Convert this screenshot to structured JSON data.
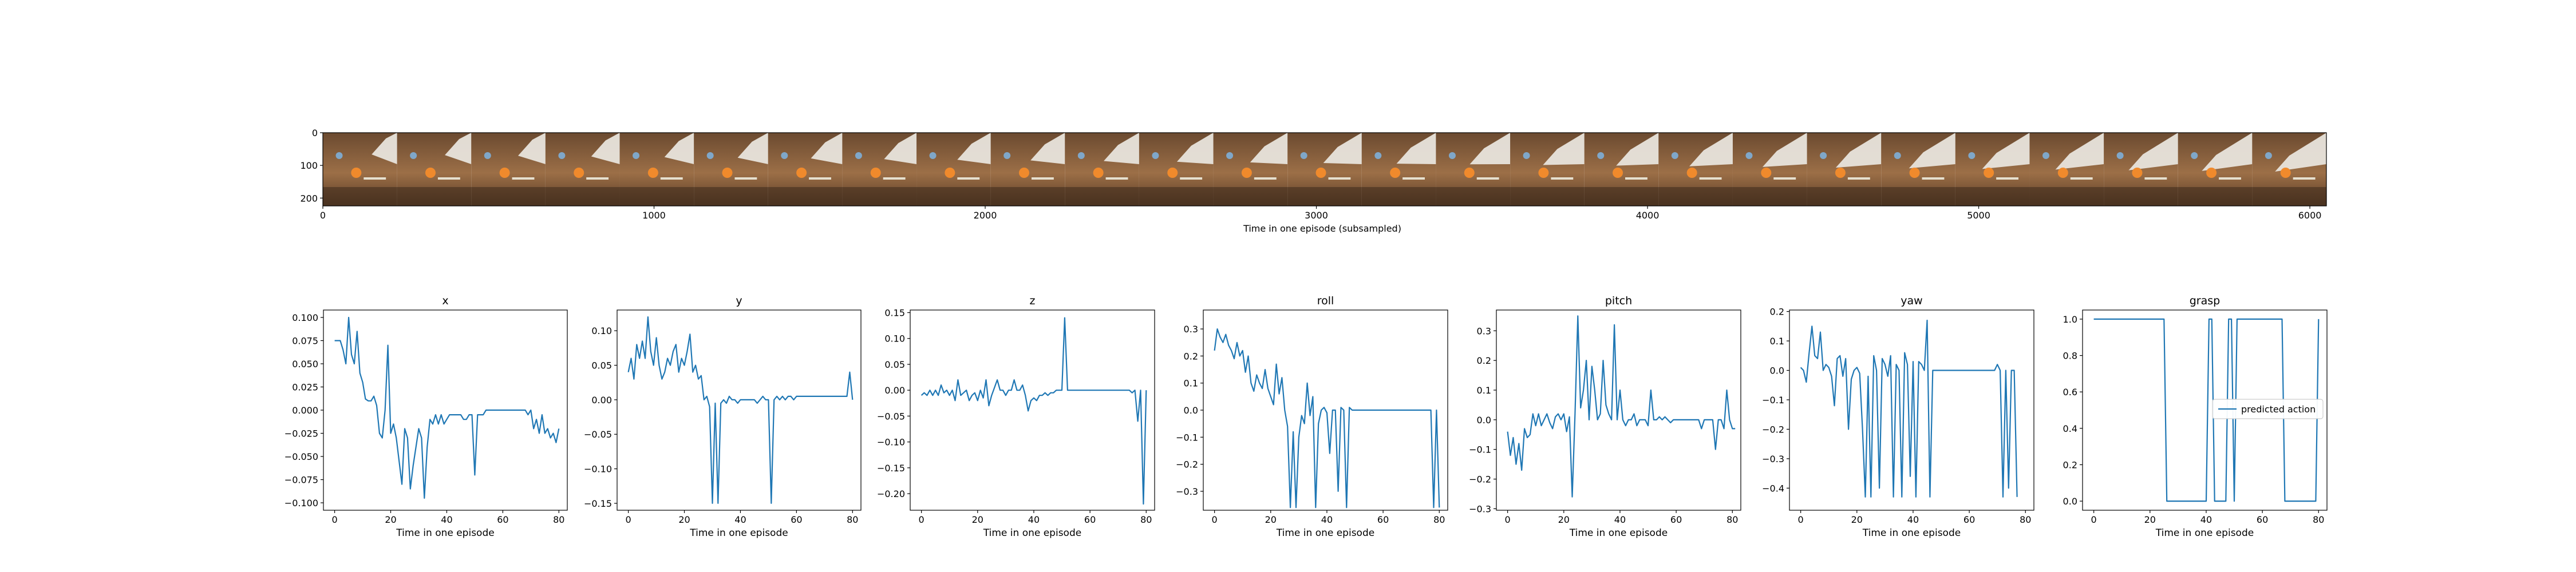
{
  "image_strip": {
    "xlabel": "Time in one episode (subsampled)",
    "x_ticks": [
      "0",
      "1000",
      "2000",
      "3000",
      "4000",
      "5000",
      "6000"
    ],
    "x_range": [
      0,
      6050
    ],
    "y_ticks": [
      "0",
      "100",
      "200"
    ],
    "y_range": [
      0,
      224
    ],
    "frame_count": 27
  },
  "chart_data": [
    {
      "type": "line",
      "title": "x",
      "xlabel": "Time in one episode",
      "ylabel": "",
      "xlim": [
        -4,
        83
      ],
      "ylim": [
        -0.108,
        0.108
      ],
      "xticks": [
        0,
        20,
        40,
        60,
        80
      ],
      "yticks": [
        0.1,
        0.075,
        0.05,
        0.025,
        0.0,
        -0.025,
        -0.05,
        -0.075,
        -0.1
      ],
      "ytick_labels": [
        "0.100",
        "0.075",
        "0.050",
        "0.025",
        "0.000",
        "−0.025",
        "−0.050",
        "−0.075",
        "−0.100"
      ],
      "series": [
        {
          "name": "",
          "values": [
            0.075,
            0.075,
            0.075,
            0.065,
            0.05,
            0.1,
            0.06,
            0.05,
            0.085,
            0.04,
            0.03,
            0.012,
            0.01,
            0.01,
            0.015,
            0.005,
            -0.025,
            -0.03,
            0.0,
            0.07,
            -0.025,
            -0.015,
            -0.03,
            -0.055,
            -0.08,
            -0.02,
            -0.03,
            -0.085,
            -0.06,
            -0.04,
            -0.02,
            -0.03,
            -0.095,
            -0.04,
            -0.01,
            -0.015,
            -0.005,
            -0.015,
            -0.005,
            -0.015,
            -0.01,
            -0.005,
            -0.005,
            -0.005,
            -0.005,
            -0.005,
            -0.01,
            -0.01,
            -0.005,
            -0.005,
            -0.07,
            -0.005,
            -0.005,
            -0.005,
            0.0,
            0.0,
            0.0,
            0.0,
            0.0,
            0.0,
            0.0,
            0.0,
            0.0,
            0.0,
            0.0,
            0.0,
            0.0,
            0.0,
            0.0,
            -0.005,
            0.0,
            -0.02,
            -0.01,
            -0.025,
            -0.005,
            -0.025,
            -0.02,
            -0.03,
            -0.025,
            -0.035,
            -0.02
          ]
        }
      ]
    },
    {
      "type": "line",
      "title": "y",
      "xlabel": "Time in one episode",
      "ylabel": "",
      "xlim": [
        -4,
        83
      ],
      "ylim": [
        -0.16,
        0.13
      ],
      "xticks": [
        0,
        20,
        40,
        60,
        80
      ],
      "yticks": [
        0.1,
        0.05,
        0.0,
        -0.05,
        -0.1,
        -0.15
      ],
      "ytick_labels": [
        "0.10",
        "0.05",
        "0.00",
        "−0.05",
        "−0.10",
        "−0.15"
      ],
      "series": [
        {
          "name": "",
          "values": [
            0.04,
            0.06,
            0.03,
            0.08,
            0.06,
            0.085,
            0.06,
            0.12,
            0.07,
            0.05,
            0.09,
            0.05,
            0.03,
            0.04,
            0.06,
            0.05,
            0.07,
            0.08,
            0.04,
            0.06,
            0.05,
            0.07,
            0.095,
            0.04,
            0.05,
            0.03,
            0.035,
            0.0,
            0.005,
            -0.01,
            -0.15,
            -0.005,
            -0.15,
            -0.005,
            0.0,
            -0.005,
            0.005,
            0.0,
            0.0,
            -0.005,
            0.0,
            0.0,
            0.0,
            0.0,
            0.0,
            0.0,
            -0.005,
            0.0,
            0.005,
            0.0,
            0.0,
            -0.15,
            0.0,
            0.005,
            0.0,
            0.005,
            0.0,
            0.005,
            0.005,
            0.0,
            0.005,
            0.005,
            0.005,
            0.005,
            0.005,
            0.005,
            0.005,
            0.005,
            0.005,
            0.005,
            0.005,
            0.005,
            0.005,
            0.005,
            0.005,
            0.005,
            0.005,
            0.005,
            0.005,
            0.04,
            0.0
          ]
        }
      ]
    },
    {
      "type": "line",
      "title": "z",
      "xlabel": "Time in one episode",
      "ylabel": "",
      "xlim": [
        -4,
        83
      ],
      "ylim": [
        -0.232,
        0.155
      ],
      "xticks": [
        0,
        20,
        40,
        60,
        80
      ],
      "yticks": [
        0.15,
        0.1,
        0.05,
        0.0,
        -0.05,
        -0.1,
        -0.15,
        -0.2
      ],
      "ytick_labels": [
        "0.15",
        "0.10",
        "0.05",
        "0.00",
        "−0.05",
        "−0.10",
        "−0.15",
        "−0.20"
      ],
      "series": [
        {
          "name": "",
          "values": [
            -0.01,
            -0.005,
            -0.01,
            0.0,
            -0.01,
            0.0,
            -0.01,
            0.01,
            -0.005,
            0.0,
            -0.01,
            0.0,
            -0.02,
            0.02,
            -0.01,
            -0.005,
            0.0,
            -0.02,
            -0.01,
            -0.005,
            -0.02,
            0.0,
            -0.015,
            0.02,
            -0.03,
            -0.01,
            0.005,
            0.02,
            0.0,
            0.0,
            -0.01,
            0.0,
            0.0,
            0.02,
            0.0,
            0.0,
            0.01,
            -0.01,
            -0.04,
            -0.02,
            -0.015,
            -0.02,
            -0.01,
            -0.01,
            -0.005,
            -0.01,
            -0.005,
            -0.005,
            0.0,
            0.0,
            0.0,
            0.14,
            0.0,
            0.0,
            0.0,
            0.0,
            0.0,
            0.0,
            0.0,
            0.0,
            0.0,
            0.0,
            0.0,
            0.0,
            0.0,
            0.0,
            0.0,
            0.0,
            0.0,
            0.0,
            0.0,
            0.0,
            0.0,
            0.0,
            0.0,
            -0.005,
            0.0,
            -0.06,
            0.0,
            -0.22,
            0.0
          ]
        }
      ]
    },
    {
      "type": "line",
      "title": "roll",
      "xlabel": "Time in one episode",
      "ylabel": "",
      "xlim": [
        -4,
        83
      ],
      "ylim": [
        -0.37,
        0.37
      ],
      "xticks": [
        0,
        20,
        40,
        60,
        80
      ],
      "yticks": [
        0.3,
        0.2,
        0.1,
        0.0,
        -0.1,
        -0.2,
        -0.3
      ],
      "ytick_labels": [
        "0.3",
        "0.2",
        "0.1",
        "0.0",
        "−0.1",
        "−0.2",
        "−0.3"
      ],
      "series": [
        {
          "name": "",
          "values": [
            0.22,
            0.3,
            0.27,
            0.25,
            0.28,
            0.24,
            0.22,
            0.19,
            0.25,
            0.2,
            0.22,
            0.14,
            0.2,
            0.1,
            0.07,
            0.13,
            0.1,
            0.08,
            0.15,
            0.08,
            0.05,
            0.02,
            0.17,
            0.06,
            0.12,
            0.0,
            -0.06,
            -0.36,
            -0.08,
            -0.36,
            -0.1,
            -0.02,
            -0.05,
            0.1,
            -0.02,
            0.05,
            -0.36,
            -0.05,
            0.0,
            0.01,
            -0.01,
            -0.16,
            0.0,
            0.0,
            -0.3,
            0.01,
            0.0,
            -0.36,
            0.01,
            0.0,
            0.0,
            0.0,
            0.0,
            0.0,
            0.0,
            0.0,
            0.0,
            0.0,
            0.0,
            0.0,
            0.0,
            0.0,
            0.0,
            0.0,
            0.0,
            0.0,
            0.0,
            0.0,
            0.0,
            0.0,
            0.0,
            0.0,
            0.0,
            0.0,
            0.0,
            0.0,
            0.0,
            0.0,
            -0.36,
            0.0,
            -0.36
          ]
        }
      ]
    },
    {
      "type": "line",
      "title": "pitch",
      "xlabel": "Time in one episode",
      "ylabel": "",
      "xlim": [
        -4,
        83
      ],
      "ylim": [
        -0.305,
        0.37
      ],
      "xticks": [
        0,
        20,
        40,
        60,
        80
      ],
      "yticks": [
        0.3,
        0.2,
        0.1,
        0.0,
        -0.1,
        -0.2,
        -0.3
      ],
      "ytick_labels": [
        "0.3",
        "0.2",
        "0.1",
        "0.0",
        "−0.1",
        "−0.2",
        "−0.3"
      ],
      "series": [
        {
          "name": "",
          "values": [
            -0.04,
            -0.12,
            -0.06,
            -0.15,
            -0.08,
            -0.17,
            -0.03,
            -0.06,
            -0.05,
            0.02,
            -0.02,
            0.02,
            -0.02,
            0.0,
            0.02,
            -0.01,
            -0.03,
            0.01,
            0.02,
            0.0,
            0.02,
            -0.04,
            0.01,
            -0.26,
            0.02,
            0.35,
            0.04,
            0.1,
            0.2,
            0.0,
            0.18,
            0.1,
            0.0,
            0.02,
            0.2,
            0.05,
            0.02,
            0.0,
            0.32,
            0.0,
            0.1,
            0.0,
            -0.02,
            0.0,
            0.0,
            0.02,
            -0.02,
            0.0,
            0.0,
            0.0,
            -0.02,
            0.1,
            0.0,
            0.0,
            0.01,
            0.0,
            0.01,
            0.0,
            -0.01,
            0.0,
            0.0,
            0.0,
            0.0,
            0.0,
            0.0,
            0.0,
            0.0,
            0.0,
            0.0,
            -0.03,
            0.0,
            0.0,
            0.0,
            0.0,
            -0.1,
            0.0,
            0.0,
            -0.03,
            0.1,
            0.0,
            -0.03,
            -0.03
          ]
        }
      ]
    },
    {
      "type": "line",
      "title": "yaw",
      "xlabel": "Time in one episode",
      "ylabel": "",
      "xlim": [
        -4,
        83
      ],
      "ylim": [
        -0.475,
        0.205
      ],
      "xticks": [
        0,
        20,
        40,
        60,
        80
      ],
      "yticks": [
        0.2,
        0.1,
        0.0,
        -0.1,
        -0.2,
        -0.3,
        -0.4
      ],
      "ytick_labels": [
        "0.2",
        "0.1",
        "0.0",
        "−0.1",
        "−0.2",
        "−0.3",
        "−0.4"
      ],
      "series": [
        {
          "name": "",
          "values": [
            0.01,
            0.0,
            -0.04,
            0.06,
            0.15,
            0.05,
            0.04,
            0.13,
            0.0,
            0.02,
            0.01,
            -0.02,
            -0.12,
            0.04,
            0.05,
            -0.02,
            0.04,
            -0.2,
            -0.03,
            0.0,
            0.01,
            -0.01,
            -0.2,
            -0.43,
            -0.02,
            -0.43,
            0.05,
            0.0,
            -0.4,
            0.04,
            0.02,
            -0.02,
            0.05,
            -0.43,
            0.02,
            0.0,
            -0.43,
            0.06,
            0.02,
            -0.36,
            0.03,
            -0.43,
            0.03,
            0.02,
            0.0,
            0.17,
            -0.43,
            0.0,
            0.0,
            0.0,
            0.0,
            0.0,
            0.0,
            0.0,
            0.0,
            0.0,
            0.0,
            0.0,
            0.0,
            0.0,
            0.0,
            0.0,
            0.0,
            0.0,
            0.0,
            0.0,
            0.0,
            0.0,
            0.0,
            0.0,
            0.02,
            0.0,
            -0.43,
            0.0,
            -0.4,
            0.0,
            0.0,
            -0.43
          ]
        }
      ]
    },
    {
      "type": "line",
      "title": "grasp",
      "xlabel": "Time in one episode",
      "ylabel": "",
      "xlim": [
        -4,
        83
      ],
      "ylim": [
        -0.05,
        1.05
      ],
      "xticks": [
        0,
        20,
        40,
        60,
        80
      ],
      "yticks": [
        1.0,
        0.8,
        0.6,
        0.4,
        0.2,
        0.0
      ],
      "ytick_labels": [
        "1.0",
        "0.8",
        "0.6",
        "0.4",
        "0.2",
        "0.0"
      ],
      "legend": {
        "placement": "center-right",
        "entries": [
          "predicted action"
        ]
      },
      "series": [
        {
          "name": "predicted action",
          "values": [
            1,
            1,
            1,
            1,
            1,
            1,
            1,
            1,
            1,
            1,
            1,
            1,
            1,
            1,
            1,
            1,
            1,
            1,
            1,
            1,
            1,
            1,
            1,
            1,
            1,
            1,
            0,
            0,
            0,
            0,
            0,
            0,
            0,
            0,
            0,
            0,
            0,
            0,
            0,
            0,
            0,
            1,
            1,
            0,
            0,
            0,
            0,
            0,
            1,
            1,
            0,
            1,
            1,
            1,
            1,
            1,
            1,
            1,
            1,
            1,
            1,
            1,
            1,
            1,
            1,
            1,
            1,
            1,
            0,
            0,
            0,
            0,
            0,
            0,
            0,
            0,
            0,
            0,
            0,
            0,
            1
          ]
        }
      ]
    }
  ]
}
